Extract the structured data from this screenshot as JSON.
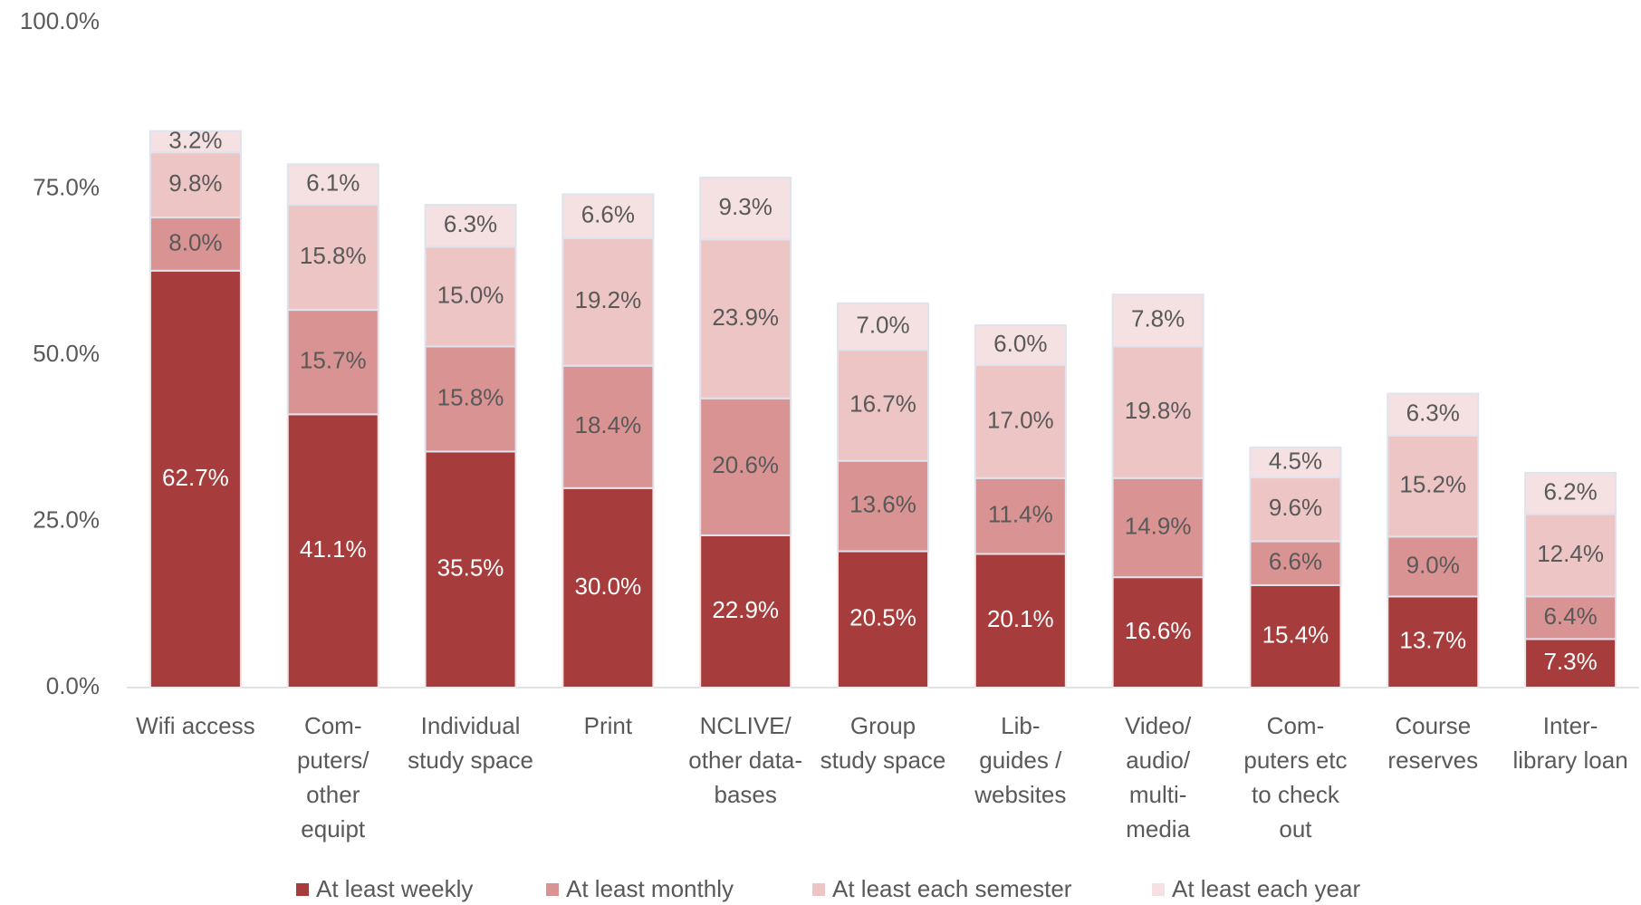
{
  "chart_data": {
    "type": "stacked_bar",
    "categories": [
      "Wifi access",
      "Com-\nputers/\nother\nequipt",
      "Individual\nstudy space",
      "Print",
      "NCLIVE/\nother data-\nbases",
      "Group\nstudy space",
      "Lib-\nguides /\nwebsites",
      "Video/\naudio/\nmulti-\nmedia",
      "Com-\nputers etc\nto check\nout",
      "Course\nreserves",
      "Inter-\nlibrary loan"
    ],
    "series": [
      {
        "name": "At least weekly",
        "color": "#a63c3b",
        "values": [
          62.7,
          41.1,
          35.5,
          30.0,
          22.9,
          20.5,
          20.1,
          16.6,
          15.4,
          13.7,
          7.3
        ],
        "value_labels": [
          "62.7%",
          "41.1%",
          "35.5%",
          "30.0%",
          "22.9%",
          "20.5%",
          "20.1%",
          "16.6%",
          "15.4%",
          "13.7%",
          "7.3%"
        ]
      },
      {
        "name": "At least monthly",
        "color": "#d99392",
        "values": [
          8.0,
          15.7,
          15.8,
          18.4,
          20.6,
          13.6,
          11.4,
          14.9,
          6.6,
          9.0,
          6.4
        ],
        "value_labels": [
          "8.0%",
          "15.7%",
          "15.8%",
          "18.4%",
          "20.6%",
          "13.6%",
          "11.4%",
          "14.9%",
          "6.6%",
          "9.0%",
          "6.4%"
        ]
      },
      {
        "name": "At least each semester",
        "color": "#edc5c5",
        "values": [
          9.8,
          15.8,
          15.0,
          19.2,
          23.9,
          16.7,
          17.0,
          19.8,
          9.6,
          15.2,
          12.4
        ],
        "value_labels": [
          "9.8%",
          "15.8%",
          "15.0%",
          "19.2%",
          "23.9%",
          "16.7%",
          "17.0%",
          "19.8%",
          "9.6%",
          "15.2%",
          "12.4%"
        ]
      },
      {
        "name": "At least each year",
        "color": "#f5e1e1",
        "values": [
          3.2,
          6.1,
          6.3,
          6.6,
          9.3,
          7.0,
          6.0,
          7.8,
          4.5,
          6.3,
          6.2
        ],
        "value_labels": [
          "3.2%",
          "6.1%",
          "6.3%",
          "6.6%",
          "9.3%",
          "7.0%",
          "6.0%",
          "7.8%",
          "4.5%",
          "6.3%",
          "6.2%"
        ]
      }
    ],
    "ylim": [
      0,
      100
    ],
    "yticks": [
      {
        "value": 0,
        "label": "0.0%"
      },
      {
        "value": 25,
        "label": "25.0%"
      },
      {
        "value": 50,
        "label": "50.0%"
      },
      {
        "value": 75,
        "label": "75.0%"
      },
      {
        "value": 100,
        "label": "100.0%"
      }
    ],
    "legend": "bottom"
  }
}
